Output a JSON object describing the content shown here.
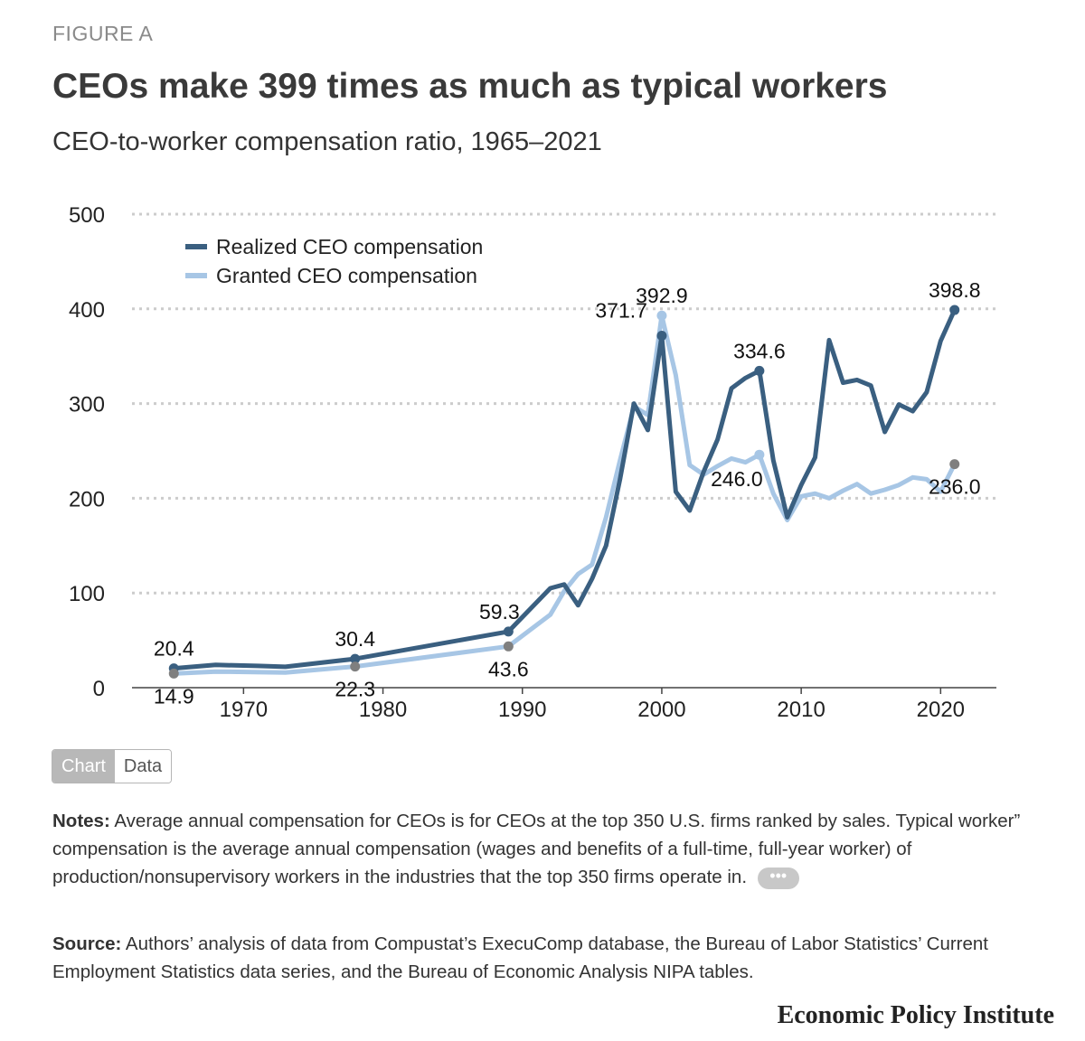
{
  "figure_label": "FIGURE A",
  "toggle": {
    "chart": "Chart",
    "data": "Data"
  },
  "notes": {
    "label": "Notes:",
    "text": " Average annual compensation for CEOs is for CEOs at the top 350 U.S. firms ranked by sales. Typical worker” compensation is the average annual compensation (wages and benefits of a full-time, full-year worker) of production/nonsupervisory workers in the industries that the top 350 firms operate in.",
    "more": "•••"
  },
  "source": {
    "label": "Source:",
    "text": " Authors’ analysis of data from Compustat’s ExecuComp database, the Bureau of Labor Statistics’ Current Employment Statistics data series, and the Bureau of Economic Analysis NIPA tables."
  },
  "brand": "Economic Policy Institute",
  "colors": {
    "realized": "#3a5f80",
    "granted": "#a7c6e5",
    "marker_gray": "#7f7f7f",
    "grid": "#cccccc"
  },
  "chart_data": {
    "type": "line",
    "title": "CEOs make 399 times as much as typical workers",
    "subtitle": "CEO-to-worker compensation ratio, 1965–2021",
    "xlabel": "",
    "ylabel": "",
    "xlim": [
      1962,
      2024
    ],
    "ylim": [
      0,
      500
    ],
    "yticks": [
      0,
      100,
      200,
      300,
      400,
      500
    ],
    "xticks": [
      1970,
      1980,
      1990,
      2000,
      2010,
      2020
    ],
    "grid": true,
    "legend": "top-left",
    "series": [
      {
        "name": "Realized CEO compensation",
        "points": [
          [
            1965,
            20.4
          ],
          [
            1968,
            24
          ],
          [
            1971,
            23
          ],
          [
            1973,
            22
          ],
          [
            1978,
            30.4
          ],
          [
            1989,
            59.3
          ],
          [
            1992,
            105
          ],
          [
            1993,
            109
          ],
          [
            1994,
            87
          ],
          [
            1995,
            115
          ],
          [
            1996,
            150
          ],
          [
            1997,
            220
          ],
          [
            1998,
            300
          ],
          [
            1999,
            272
          ],
          [
            2000,
            371.7
          ],
          [
            2001,
            207
          ],
          [
            2002,
            187
          ],
          [
            2003,
            228
          ],
          [
            2004,
            262
          ],
          [
            2005,
            316
          ],
          [
            2006,
            327
          ],
          [
            2007,
            334.6
          ],
          [
            2008,
            240
          ],
          [
            2009,
            180
          ],
          [
            2010,
            214
          ],
          [
            2011,
            243
          ],
          [
            2012,
            367
          ],
          [
            2013,
            322
          ],
          [
            2014,
            325
          ],
          [
            2015,
            319
          ],
          [
            2016,
            270
          ],
          [
            2017,
            299
          ],
          [
            2018,
            292
          ],
          [
            2019,
            312
          ],
          [
            2020,
            366
          ],
          [
            2021,
            398.8
          ]
        ]
      },
      {
        "name": "Granted CEO compensation",
        "points": [
          [
            1965,
            14.9
          ],
          [
            1968,
            17
          ],
          [
            1973,
            16
          ],
          [
            1978,
            22.3
          ],
          [
            1989,
            43.6
          ],
          [
            1992,
            77
          ],
          [
            1993,
            102
          ],
          [
            1994,
            120
          ],
          [
            1995,
            130
          ],
          [
            1996,
            180
          ],
          [
            1997,
            240
          ],
          [
            1998,
            297
          ],
          [
            1999,
            288
          ],
          [
            2000,
            392.9
          ],
          [
            2001,
            330
          ],
          [
            2002,
            235
          ],
          [
            2003,
            225
          ],
          [
            2004,
            234
          ],
          [
            2005,
            242
          ],
          [
            2006,
            238
          ],
          [
            2007,
            246.0
          ],
          [
            2008,
            205
          ],
          [
            2009,
            177
          ],
          [
            2010,
            202
          ],
          [
            2011,
            205
          ],
          [
            2012,
            200
          ],
          [
            2013,
            208
          ],
          [
            2014,
            215
          ],
          [
            2015,
            205
          ],
          [
            2016,
            209
          ],
          [
            2017,
            214
          ],
          [
            2018,
            222
          ],
          [
            2019,
            220
          ],
          [
            2020,
            207
          ],
          [
            2021,
            236.0
          ]
        ]
      }
    ],
    "annotations": [
      {
        "series": 0,
        "x": 1965,
        "y": 20.4,
        "label": "20.4",
        "pos": "above"
      },
      {
        "series": 1,
        "x": 1965,
        "y": 14.9,
        "label": "14.9",
        "pos": "below"
      },
      {
        "series": 0,
        "x": 1978,
        "y": 30.4,
        "label": "30.4",
        "pos": "above"
      },
      {
        "series": 1,
        "x": 1978,
        "y": 22.3,
        "label": "22.3",
        "pos": "below"
      },
      {
        "series": 0,
        "x": 1989,
        "y": 59.3,
        "label": "59.3",
        "pos": "above"
      },
      {
        "series": 1,
        "x": 1989,
        "y": 43.6,
        "label": "43.6",
        "pos": "below"
      },
      {
        "series": 0,
        "x": 2000,
        "y": 371.7,
        "label": "371.7",
        "pos": "left"
      },
      {
        "series": 1,
        "x": 2000,
        "y": 392.9,
        "label": "392.9",
        "pos": "above"
      },
      {
        "series": 0,
        "x": 2007,
        "y": 334.6,
        "label": "334.6",
        "pos": "above"
      },
      {
        "series": 1,
        "x": 2007,
        "y": 246.0,
        "label": "246.0",
        "pos": "below-left"
      },
      {
        "series": 0,
        "x": 2021,
        "y": 398.8,
        "label": "398.8",
        "pos": "above"
      },
      {
        "series": 1,
        "x": 2021,
        "y": 236.0,
        "label": "236.0",
        "pos": "below"
      }
    ]
  }
}
